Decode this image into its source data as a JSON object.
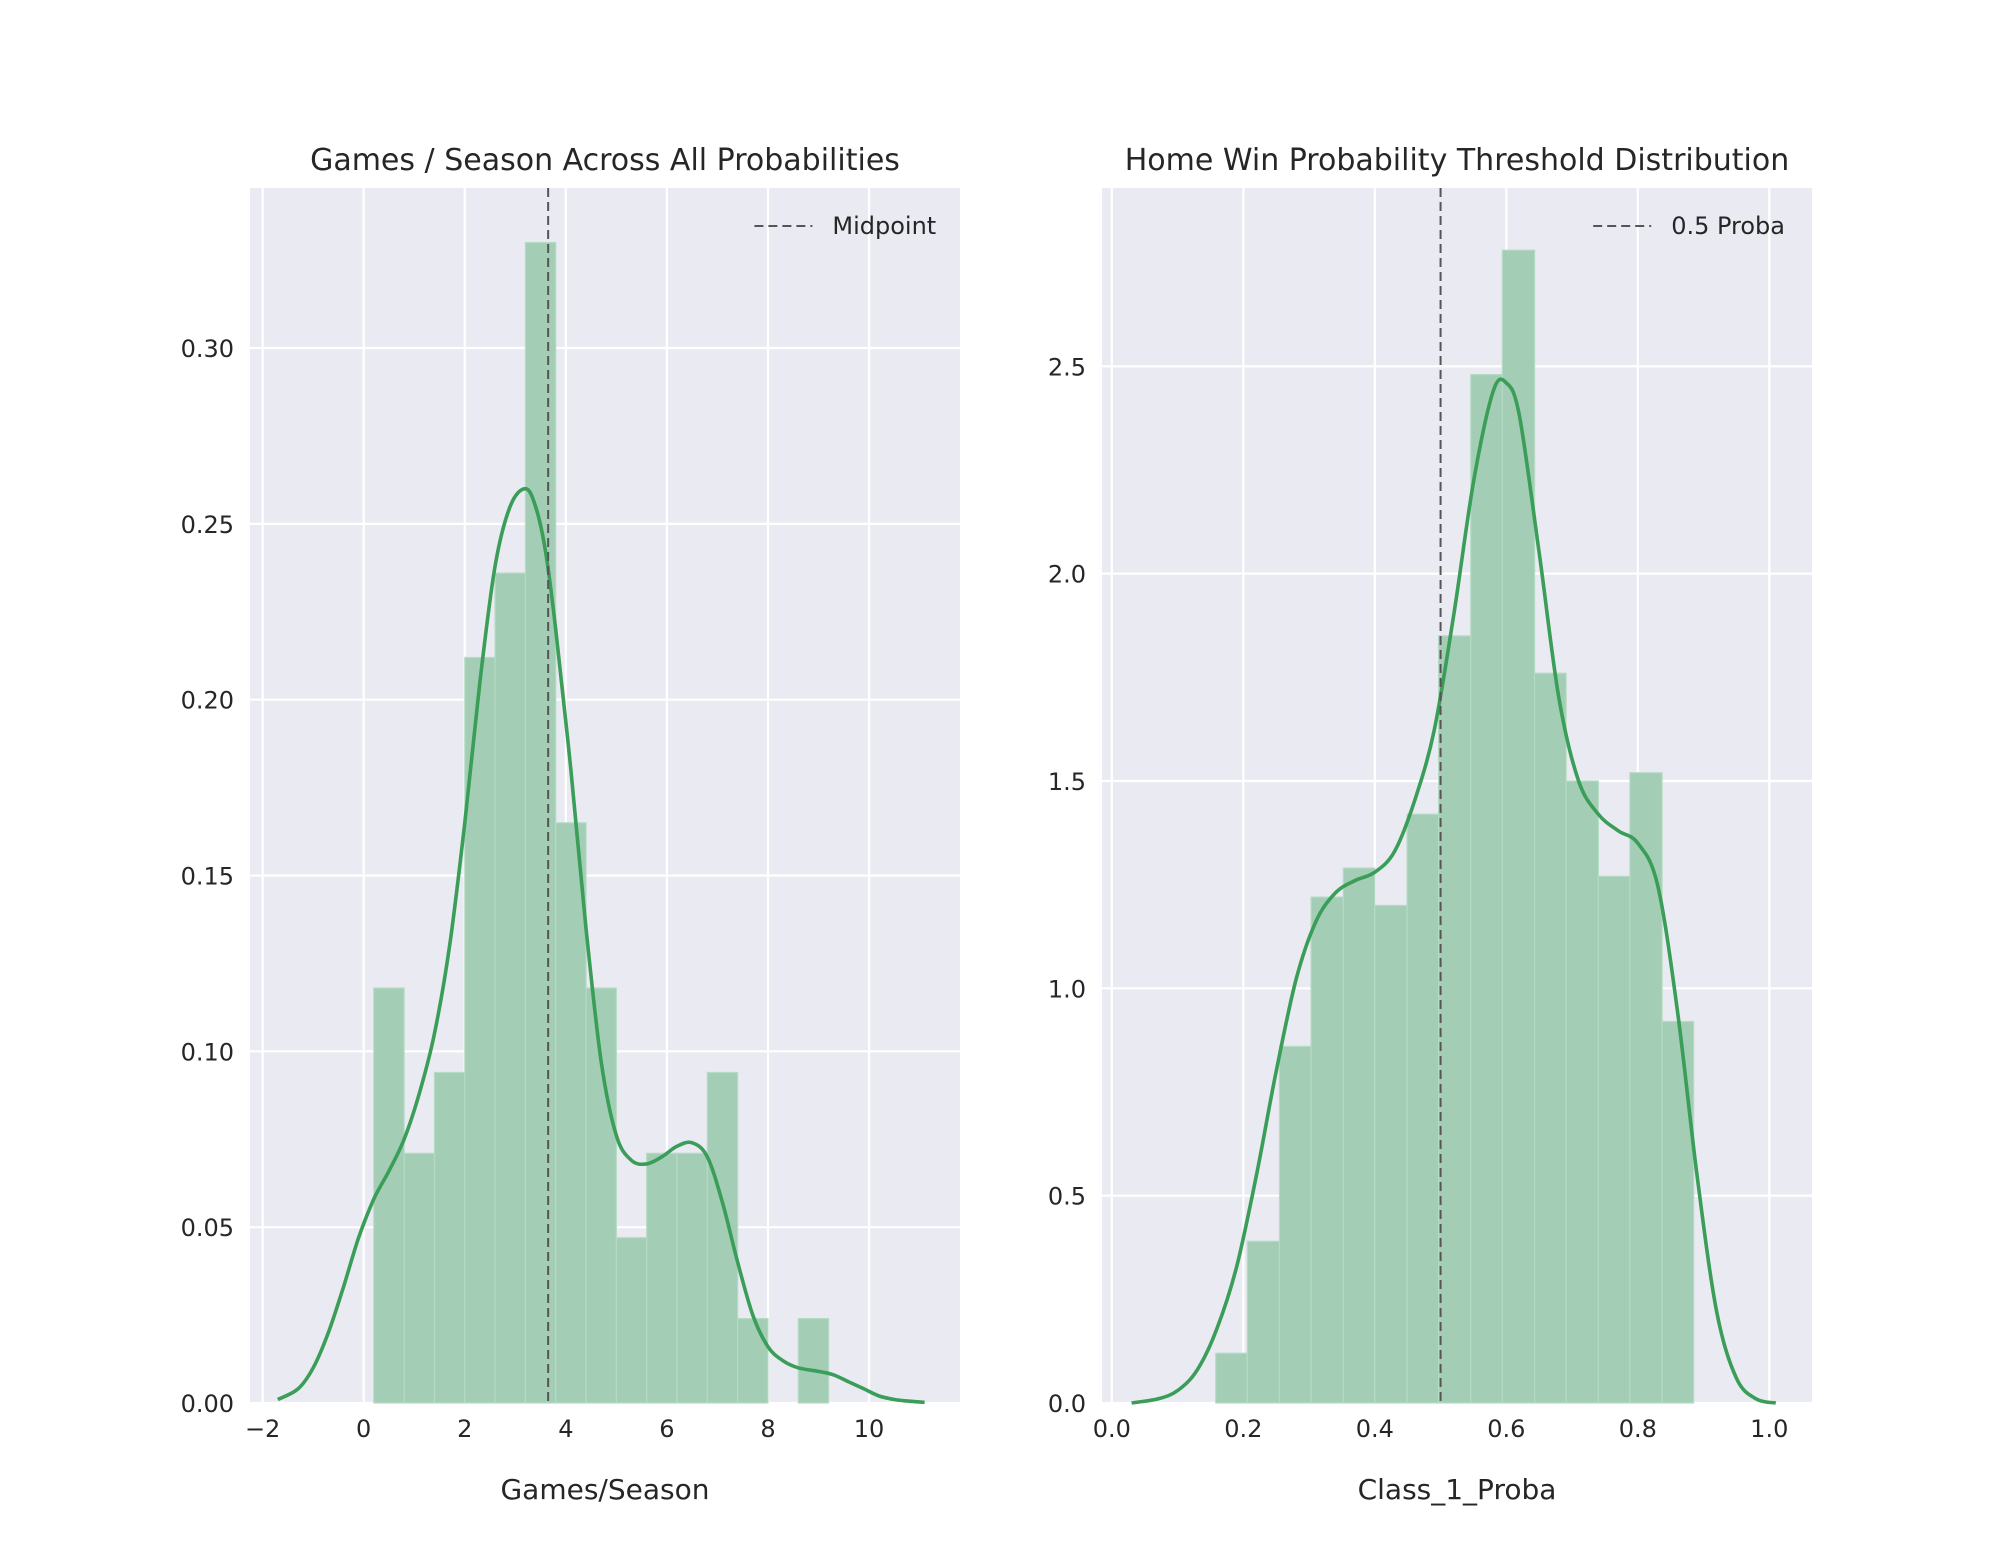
{
  "chart_data": [
    {
      "type": "bar",
      "subtype": "histogram-with-kde",
      "title": "Games / Season Across All Probabilities",
      "xlabel": "Games/Season",
      "ylabel": "",
      "xlim": [
        -2.25,
        11.8
      ],
      "ylim": [
        0,
        0.3455
      ],
      "xticks": [
        -2,
        0,
        2,
        4,
        6,
        8,
        10
      ],
      "xtick_labels": [
        "−2",
        "0",
        "2",
        "4",
        "6",
        "8",
        "10"
      ],
      "yticks": [
        0.0,
        0.05,
        0.1,
        0.15,
        0.2,
        0.25,
        0.3
      ],
      "ytick_labels": [
        "0.00",
        "0.05",
        "0.10",
        "0.15",
        "0.20",
        "0.25",
        "0.30"
      ],
      "grid": true,
      "bin_edges": [
        0.2,
        0.8,
        1.4,
        2.0,
        2.6,
        3.2,
        3.8,
        4.4,
        5.0,
        5.6,
        6.2,
        6.8,
        7.4,
        8.0,
        8.6,
        9.2
      ],
      "bar_values": [
        0.118,
        0.071,
        0.094,
        0.212,
        0.236,
        0.33,
        0.165,
        0.118,
        0.047,
        0.071,
        0.071,
        0.094,
        0.024,
        0.0,
        0.024
      ],
      "kde": {
        "x": [
          -1.7,
          -1.3,
          -1.0,
          -0.7,
          -0.4,
          -0.1,
          0.2,
          0.5,
          0.8,
          1.1,
          1.4,
          1.7,
          2.0,
          2.3,
          2.6,
          2.9,
          3.2,
          3.4,
          3.6,
          3.8,
          4.1,
          4.4,
          4.7,
          5.0,
          5.3,
          5.6,
          5.9,
          6.2,
          6.5,
          6.8,
          7.1,
          7.4,
          7.7,
          8.0,
          8.3,
          8.6,
          9.0,
          9.3,
          9.6,
          9.9,
          10.2,
          10.5,
          10.8,
          11.1
        ],
        "y": [
          0.001,
          0.004,
          0.01,
          0.02,
          0.033,
          0.047,
          0.058,
          0.066,
          0.075,
          0.088,
          0.105,
          0.13,
          0.165,
          0.205,
          0.238,
          0.255,
          0.26,
          0.255,
          0.242,
          0.22,
          0.18,
          0.135,
          0.097,
          0.076,
          0.069,
          0.068,
          0.07,
          0.073,
          0.074,
          0.07,
          0.057,
          0.04,
          0.025,
          0.016,
          0.012,
          0.01,
          0.009,
          0.008,
          0.006,
          0.004,
          0.002,
          0.001,
          0.0005,
          0.0002
        ]
      },
      "vline": {
        "x": 3.65,
        "label": "Midpoint"
      },
      "legend": {
        "position": "upper right",
        "entries": [
          "Midpoint"
        ]
      }
    },
    {
      "type": "bar",
      "subtype": "histogram-with-kde",
      "title": "Home Win Probability Threshold Distribution",
      "xlabel": "Class_1_Proba",
      "ylabel": "",
      "xlim": [
        -0.015,
        1.065
      ],
      "ylim": [
        0,
        2.93
      ],
      "xticks": [
        0.0,
        0.2,
        0.4,
        0.6,
        0.8,
        1.0
      ],
      "xtick_labels": [
        "0.0",
        "0.2",
        "0.4",
        "0.6",
        "0.8",
        "1.0"
      ],
      "yticks": [
        0.0,
        0.5,
        1.0,
        1.5,
        2.0,
        2.5
      ],
      "ytick_labels": [
        "0.0",
        "0.5",
        "1.0",
        "1.5",
        "2.0",
        "2.5"
      ],
      "grid": true,
      "bin_edges": [
        0.158,
        0.206,
        0.255,
        0.303,
        0.352,
        0.4,
        0.449,
        0.497,
        0.546,
        0.594,
        0.643,
        0.691,
        0.74,
        0.788,
        0.837,
        0.885
      ],
      "bar_values": [
        0.12,
        0.39,
        0.86,
        1.22,
        1.29,
        1.2,
        1.42,
        1.85,
        2.48,
        2.78,
        1.76,
        1.5,
        1.27,
        1.52,
        0.92
      ],
      "kde": {
        "x": [
          0.03,
          0.07,
          0.1,
          0.13,
          0.16,
          0.19,
          0.22,
          0.25,
          0.28,
          0.31,
          0.34,
          0.37,
          0.4,
          0.43,
          0.46,
          0.49,
          0.52,
          0.55,
          0.58,
          0.6,
          0.62,
          0.65,
          0.68,
          0.71,
          0.74,
          0.77,
          0.8,
          0.83,
          0.86,
          0.89,
          0.92,
          0.95,
          0.98,
          1.01
        ],
        "y": [
          0.0,
          0.01,
          0.03,
          0.08,
          0.18,
          0.33,
          0.55,
          0.8,
          1.02,
          1.16,
          1.23,
          1.26,
          1.28,
          1.33,
          1.45,
          1.62,
          1.9,
          2.22,
          2.44,
          2.46,
          2.38,
          2.05,
          1.7,
          1.5,
          1.42,
          1.38,
          1.35,
          1.25,
          0.95,
          0.55,
          0.22,
          0.06,
          0.01,
          0.0
        ]
      },
      "vline": {
        "x": 0.5,
        "label": "0.5 Proba"
      },
      "legend": {
        "position": "upper right",
        "entries": [
          "0.5 Proba"
        ]
      }
    }
  ],
  "colors": {
    "background": "#eaeaf2",
    "grid": "#ffffff",
    "bar_fill": "#a3cdb5",
    "bar_edge": "#b6dbc4",
    "kde_line": "#3a9d58",
    "vline": "#555555"
  }
}
